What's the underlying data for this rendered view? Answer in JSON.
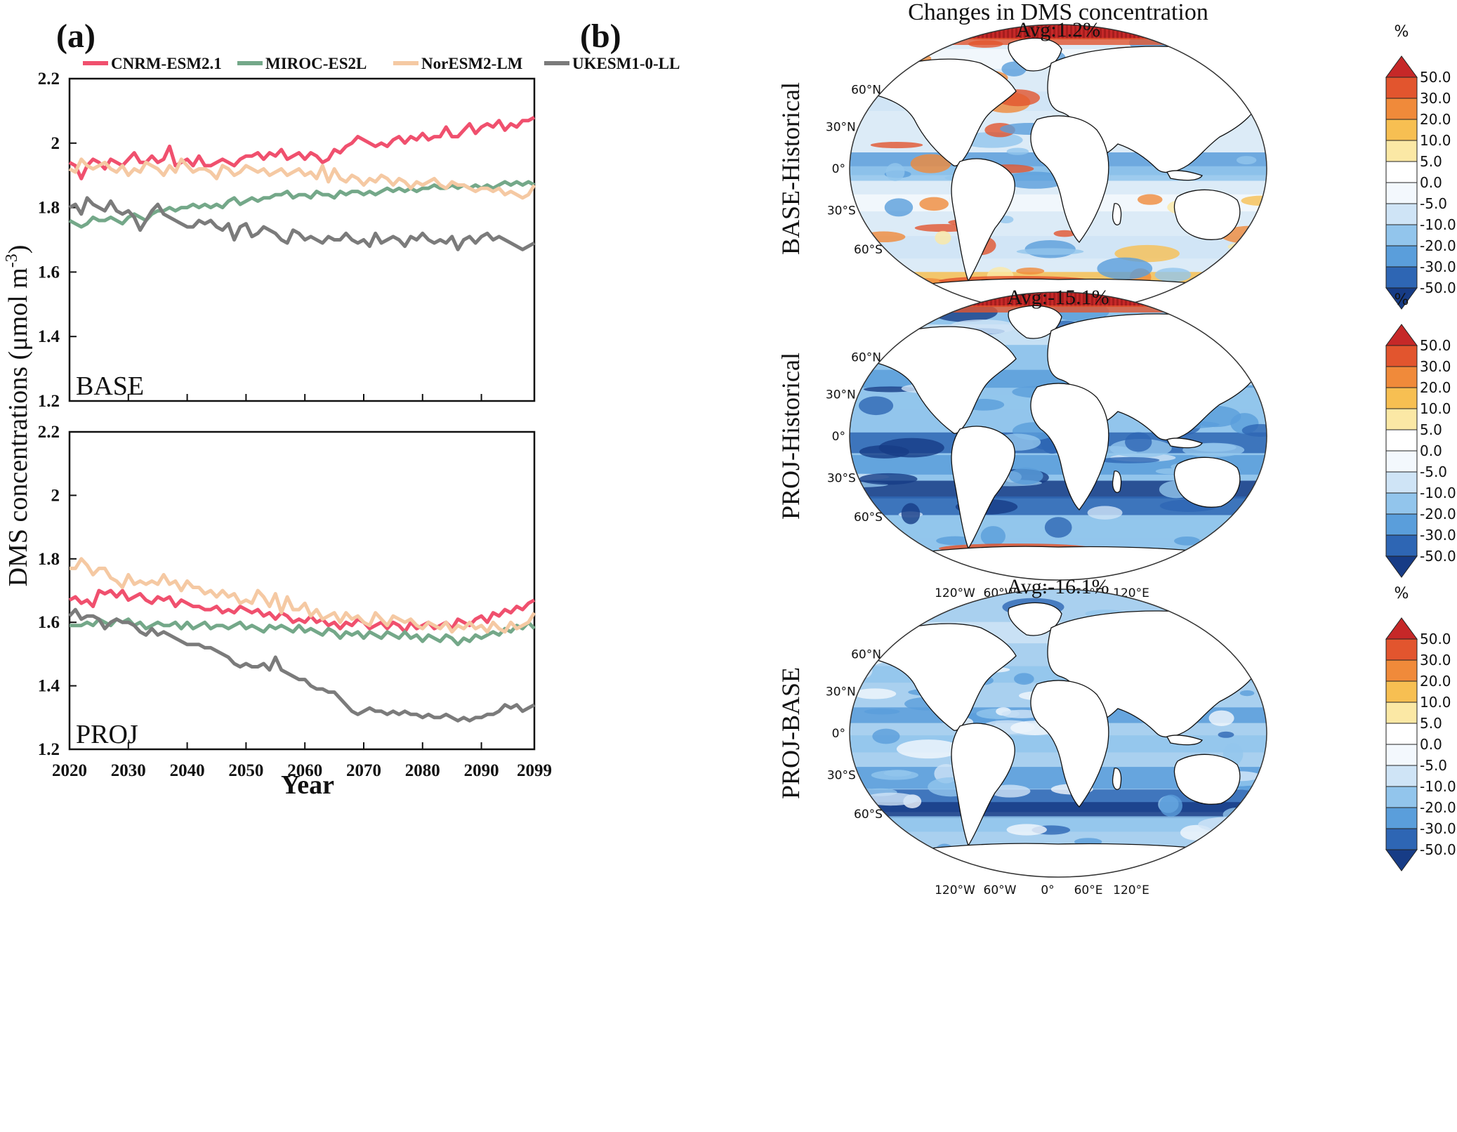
{
  "panel_a": {
    "label": "(a)",
    "ylabel": "DMS concentrations (μmol m⁻³)",
    "ylabel_main": "DMS concentrations (μmol m",
    "ylabel_sup": "-3",
    "ylabel_close": ")",
    "xlabel": "Year",
    "xticks": [
      "2020",
      "2030",
      "2040",
      "2050",
      "2060",
      "2070",
      "2080",
      "2090",
      "2099"
    ],
    "yticks": [
      "1.2",
      "1.4",
      "1.6",
      "1.8",
      "2",
      "2.2"
    ]
  },
  "panel_b": {
    "label": "(b)",
    "title": "Changes in DMS concentration",
    "maps": [
      {
        "row_label": "BASE-Historical",
        "avg": "Avg:1.2%",
        "style": "base",
        "show_lon": false
      },
      {
        "row_label": "PROJ-Historical",
        "avg": "Avg:-15.1%",
        "style": "proj",
        "show_lon": true
      },
      {
        "row_label": "PROJ-BASE",
        "avg": "Avg:-16.1%",
        "style": "diff",
        "show_lon": true
      }
    ],
    "lat_labels": [
      "60°N",
      "30°N",
      "0°",
      "30°S",
      "60°S"
    ],
    "lon_labels": [
      "120°W",
      "60°W",
      "0°",
      "60°E",
      "120°E"
    ],
    "colorbar": {
      "unit": "%",
      "labels": [
        "50.0",
        "30.0",
        "20.0",
        "10.0",
        "5.0",
        "0.0",
        "-5.0",
        "-10.0",
        "-20.0",
        "-30.0",
        "-50.0"
      ],
      "colors": [
        "#c62828",
        "#e2552e",
        "#f08a3a",
        "#f7bf52",
        "#fbe8a5",
        "#ffffff",
        "#f3f8fd",
        "#cfe4f6",
        "#92c5ec",
        "#5a9edb",
        "#2e66b4",
        "#173c86"
      ]
    }
  },
  "chart_data": [
    {
      "type": "line",
      "panel_label": "BASE",
      "xlabel": "Year",
      "ylabel": "DMS concentrations (μmol m-3)",
      "xlim": [
        2020,
        2099
      ],
      "ylim": [
        1.2,
        2.2
      ],
      "series": [
        {
          "name": "CNRM-ESM2.1",
          "color": "#f0506e",
          "values": [
            1.94,
            1.93,
            1.89,
            1.93,
            1.95,
            1.94,
            1.92,
            1.95,
            1.94,
            1.93,
            1.95,
            1.97,
            1.94,
            1.94,
            1.96,
            1.94,
            1.95,
            1.99,
            1.93,
            1.94,
            1.95,
            1.93,
            1.96,
            1.93,
            1.93,
            1.94,
            1.95,
            1.94,
            1.93,
            1.95,
            1.96,
            1.96,
            1.97,
            1.95,
            1.97,
            1.96,
            1.98,
            1.95,
            1.96,
            1.97,
            1.95,
            1.97,
            1.96,
            1.94,
            1.95,
            1.98,
            1.97,
            1.99,
            2.0,
            2.02,
            2.01,
            2.0,
            1.99,
            2.0,
            1.99,
            2.01,
            2.02,
            2.0,
            2.02,
            2.01,
            2.03,
            2.01,
            2.02,
            2.02,
            2.05,
            2.02,
            2.02,
            2.04,
            2.06,
            2.03,
            2.05,
            2.06,
            2.05,
            2.07,
            2.04,
            2.06,
            2.05,
            2.07,
            2.07,
            2.08
          ]
        },
        {
          "name": "MIROC-ES2L",
          "color": "#74a889",
          "values": [
            1.76,
            1.75,
            1.74,
            1.75,
            1.77,
            1.76,
            1.76,
            1.77,
            1.76,
            1.75,
            1.77,
            1.78,
            1.77,
            1.76,
            1.78,
            1.79,
            1.79,
            1.8,
            1.79,
            1.8,
            1.8,
            1.81,
            1.8,
            1.81,
            1.8,
            1.81,
            1.8,
            1.82,
            1.83,
            1.81,
            1.82,
            1.83,
            1.82,
            1.83,
            1.83,
            1.84,
            1.84,
            1.85,
            1.83,
            1.84,
            1.84,
            1.83,
            1.85,
            1.84,
            1.84,
            1.83,
            1.85,
            1.84,
            1.85,
            1.85,
            1.84,
            1.85,
            1.84,
            1.85,
            1.86,
            1.85,
            1.86,
            1.85,
            1.86,
            1.85,
            1.86,
            1.86,
            1.87,
            1.86,
            1.86,
            1.87,
            1.86,
            1.87,
            1.86,
            1.87,
            1.86,
            1.87,
            1.86,
            1.87,
            1.88,
            1.87,
            1.88,
            1.87,
            1.88,
            1.87
          ]
        },
        {
          "name": "NorESM2-LM",
          "color": "#f5c9a3",
          "values": [
            1.92,
            1.91,
            1.95,
            1.93,
            1.92,
            1.93,
            1.94,
            1.92,
            1.91,
            1.93,
            1.9,
            1.92,
            1.91,
            1.94,
            1.93,
            1.92,
            1.9,
            1.93,
            1.91,
            1.95,
            1.93,
            1.91,
            1.92,
            1.92,
            1.91,
            1.89,
            1.93,
            1.92,
            1.9,
            1.91,
            1.93,
            1.92,
            1.91,
            1.92,
            1.9,
            1.91,
            1.92,
            1.9,
            1.91,
            1.92,
            1.9,
            1.91,
            1.89,
            1.93,
            1.88,
            1.92,
            1.89,
            1.88,
            1.9,
            1.89,
            1.87,
            1.89,
            1.88,
            1.9,
            1.89,
            1.87,
            1.89,
            1.88,
            1.86,
            1.88,
            1.87,
            1.88,
            1.89,
            1.87,
            1.86,
            1.88,
            1.87,
            1.87,
            1.86,
            1.85,
            1.86,
            1.86,
            1.85,
            1.86,
            1.84,
            1.85,
            1.84,
            1.83,
            1.84,
            1.87
          ]
        },
        {
          "name": "UKESM1-0-LL",
          "color": "#7b7b7b",
          "values": [
            1.8,
            1.81,
            1.78,
            1.83,
            1.81,
            1.8,
            1.79,
            1.82,
            1.79,
            1.78,
            1.79,
            1.77,
            1.73,
            1.76,
            1.79,
            1.81,
            1.78,
            1.77,
            1.76,
            1.75,
            1.74,
            1.74,
            1.76,
            1.75,
            1.76,
            1.74,
            1.73,
            1.75,
            1.7,
            1.74,
            1.75,
            1.71,
            1.72,
            1.74,
            1.73,
            1.72,
            1.7,
            1.69,
            1.73,
            1.72,
            1.7,
            1.71,
            1.7,
            1.69,
            1.71,
            1.7,
            1.7,
            1.72,
            1.7,
            1.69,
            1.7,
            1.68,
            1.72,
            1.69,
            1.7,
            1.71,
            1.7,
            1.68,
            1.71,
            1.7,
            1.72,
            1.7,
            1.69,
            1.7,
            1.69,
            1.71,
            1.67,
            1.7,
            1.71,
            1.69,
            1.71,
            1.72,
            1.7,
            1.71,
            1.7,
            1.69,
            1.68,
            1.67,
            1.68,
            1.69
          ]
        }
      ]
    },
    {
      "type": "line",
      "panel_label": "PROJ",
      "xlabel": "Year",
      "ylabel": "DMS concentrations (μmol m-3)",
      "xlim": [
        2020,
        2099
      ],
      "ylim": [
        1.2,
        2.2
      ],
      "series": [
        {
          "name": "CNRM-ESM2.1",
          "color": "#f0506e",
          "values": [
            1.67,
            1.68,
            1.66,
            1.67,
            1.65,
            1.7,
            1.69,
            1.7,
            1.68,
            1.7,
            1.67,
            1.68,
            1.69,
            1.67,
            1.66,
            1.68,
            1.67,
            1.68,
            1.65,
            1.67,
            1.66,
            1.65,
            1.65,
            1.64,
            1.64,
            1.65,
            1.63,
            1.64,
            1.63,
            1.65,
            1.64,
            1.63,
            1.64,
            1.62,
            1.63,
            1.61,
            1.63,
            1.62,
            1.6,
            1.61,
            1.6,
            1.62,
            1.6,
            1.61,
            1.59,
            1.6,
            1.58,
            1.6,
            1.59,
            1.61,
            1.6,
            1.58,
            1.59,
            1.6,
            1.58,
            1.6,
            1.59,
            1.57,
            1.6,
            1.58,
            1.59,
            1.6,
            1.58,
            1.59,
            1.6,
            1.58,
            1.61,
            1.6,
            1.59,
            1.61,
            1.62,
            1.6,
            1.63,
            1.62,
            1.64,
            1.63,
            1.65,
            1.64,
            1.66,
            1.67
          ]
        },
        {
          "name": "MIROC-ES2L",
          "color": "#74a889",
          "values": [
            1.59,
            1.59,
            1.59,
            1.6,
            1.59,
            1.61,
            1.6,
            1.59,
            1.61,
            1.6,
            1.61,
            1.59,
            1.6,
            1.58,
            1.59,
            1.6,
            1.59,
            1.59,
            1.6,
            1.58,
            1.6,
            1.58,
            1.59,
            1.6,
            1.58,
            1.59,
            1.59,
            1.58,
            1.59,
            1.6,
            1.58,
            1.59,
            1.58,
            1.57,
            1.59,
            1.58,
            1.59,
            1.58,
            1.57,
            1.59,
            1.57,
            1.58,
            1.57,
            1.56,
            1.58,
            1.57,
            1.55,
            1.57,
            1.56,
            1.57,
            1.55,
            1.57,
            1.56,
            1.55,
            1.57,
            1.56,
            1.55,
            1.57,
            1.55,
            1.56,
            1.54,
            1.56,
            1.55,
            1.54,
            1.56,
            1.55,
            1.53,
            1.55,
            1.54,
            1.56,
            1.55,
            1.56,
            1.57,
            1.56,
            1.58,
            1.57,
            1.59,
            1.58,
            1.6,
            1.58
          ]
        },
        {
          "name": "NorESM2-LM",
          "color": "#f5c9a3",
          "values": [
            1.77,
            1.77,
            1.8,
            1.78,
            1.75,
            1.77,
            1.77,
            1.74,
            1.73,
            1.71,
            1.75,
            1.72,
            1.73,
            1.72,
            1.73,
            1.72,
            1.75,
            1.72,
            1.73,
            1.7,
            1.73,
            1.71,
            1.71,
            1.69,
            1.7,
            1.68,
            1.7,
            1.68,
            1.69,
            1.66,
            1.67,
            1.66,
            1.7,
            1.68,
            1.65,
            1.69,
            1.63,
            1.68,
            1.64,
            1.64,
            1.66,
            1.62,
            1.64,
            1.61,
            1.62,
            1.63,
            1.6,
            1.63,
            1.61,
            1.62,
            1.6,
            1.59,
            1.63,
            1.61,
            1.59,
            1.62,
            1.61,
            1.6,
            1.61,
            1.59,
            1.58,
            1.6,
            1.59,
            1.58,
            1.6,
            1.57,
            1.59,
            1.58,
            1.6,
            1.58,
            1.59,
            1.57,
            1.6,
            1.58,
            1.57,
            1.6,
            1.58,
            1.59,
            1.6,
            1.63
          ]
        },
        {
          "name": "UKESM1-0-LL",
          "color": "#7b7b7b",
          "values": [
            1.62,
            1.64,
            1.61,
            1.62,
            1.62,
            1.61,
            1.58,
            1.6,
            1.61,
            1.6,
            1.6,
            1.59,
            1.57,
            1.56,
            1.58,
            1.56,
            1.57,
            1.56,
            1.55,
            1.54,
            1.53,
            1.53,
            1.53,
            1.52,
            1.52,
            1.51,
            1.5,
            1.49,
            1.47,
            1.46,
            1.47,
            1.46,
            1.46,
            1.47,
            1.45,
            1.49,
            1.45,
            1.44,
            1.43,
            1.42,
            1.42,
            1.4,
            1.39,
            1.39,
            1.38,
            1.38,
            1.36,
            1.34,
            1.32,
            1.31,
            1.32,
            1.33,
            1.32,
            1.32,
            1.31,
            1.32,
            1.31,
            1.32,
            1.31,
            1.31,
            1.3,
            1.31,
            1.3,
            1.3,
            1.31,
            1.3,
            1.29,
            1.3,
            1.29,
            1.3,
            1.3,
            1.31,
            1.31,
            1.32,
            1.34,
            1.33,
            1.34,
            1.32,
            1.33,
            1.34
          ]
        }
      ]
    }
  ]
}
